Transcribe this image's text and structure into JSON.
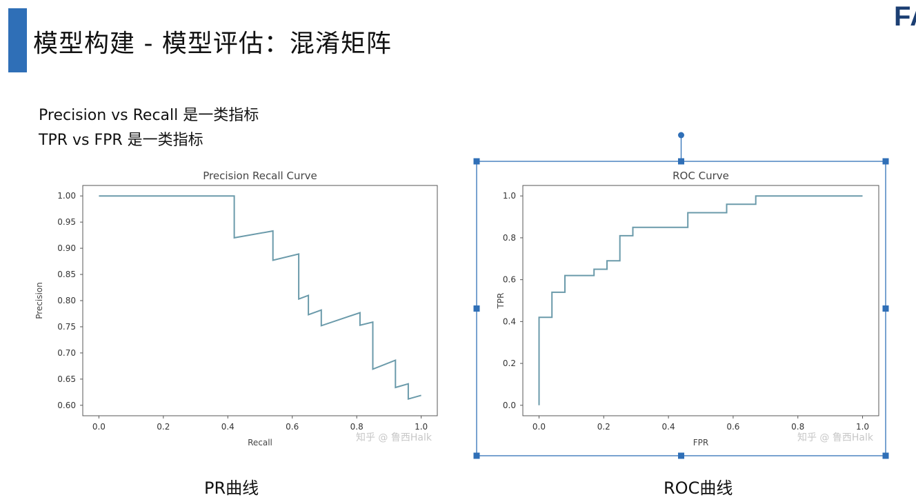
{
  "slide": {
    "title": "模型构建 - 模型评估：混淆矩阵",
    "logo": "FA",
    "notes": [
      "Precision vs Recall 是一类指标",
      "TPR vs FPR 是一类指标"
    ],
    "captions": {
      "pr": "PR曲线",
      "roc": "ROC曲线"
    },
    "watermark": "知乎 @ 鲁西Halk",
    "colors": {
      "accent": "#2f6fb7",
      "curve": "#6a9aaa",
      "selection": "#2f6fb7"
    }
  },
  "chart_data": [
    {
      "type": "line",
      "title": "Precision Recall Curve",
      "xlabel": "Recall",
      "ylabel": "Precision",
      "xlim": [
        -0.05,
        1.05
      ],
      "ylim": [
        0.58,
        1.02
      ],
      "xticks": [
        "0.0",
        "0.2",
        "0.4",
        "0.6",
        "0.8",
        "1.0"
      ],
      "yticks": [
        "0.60",
        "0.65",
        "0.70",
        "0.75",
        "0.80",
        "0.85",
        "0.90",
        "0.95",
        "1.00"
      ],
      "grid": false,
      "x": [
        0.0,
        0.42,
        0.42,
        0.54,
        0.54,
        0.62,
        0.62,
        0.65,
        0.65,
        0.69,
        0.69,
        0.81,
        0.81,
        0.85,
        0.85,
        0.92,
        0.92,
        0.96,
        0.96,
        1.0
      ],
      "y": [
        1.0,
        1.0,
        0.92,
        0.933,
        0.877,
        0.889,
        0.803,
        0.81,
        0.773,
        0.782,
        0.752,
        0.777,
        0.753,
        0.759,
        0.669,
        0.686,
        0.634,
        0.641,
        0.612,
        0.619
      ]
    },
    {
      "type": "line",
      "title": "ROC Curve",
      "xlabel": "FPR",
      "ylabel": "TPR",
      "xlim": [
        -0.05,
        1.05
      ],
      "ylim": [
        -0.05,
        1.05
      ],
      "xticks": [
        "0.0",
        "0.2",
        "0.4",
        "0.6",
        "0.8",
        "1.0"
      ],
      "yticks": [
        "0.0",
        "0.2",
        "0.4",
        "0.6",
        "0.8",
        "1.0"
      ],
      "grid": false,
      "x": [
        0.0,
        0.0,
        0.04,
        0.04,
        0.08,
        0.08,
        0.17,
        0.17,
        0.21,
        0.21,
        0.25,
        0.25,
        0.29,
        0.29,
        0.46,
        0.46,
        0.58,
        0.58,
        0.67,
        0.67,
        1.0
      ],
      "y": [
        0.0,
        0.42,
        0.42,
        0.54,
        0.54,
        0.62,
        0.62,
        0.65,
        0.65,
        0.69,
        0.69,
        0.81,
        0.81,
        0.85,
        0.85,
        0.92,
        0.92,
        0.96,
        0.96,
        1.0,
        1.0
      ]
    }
  ]
}
